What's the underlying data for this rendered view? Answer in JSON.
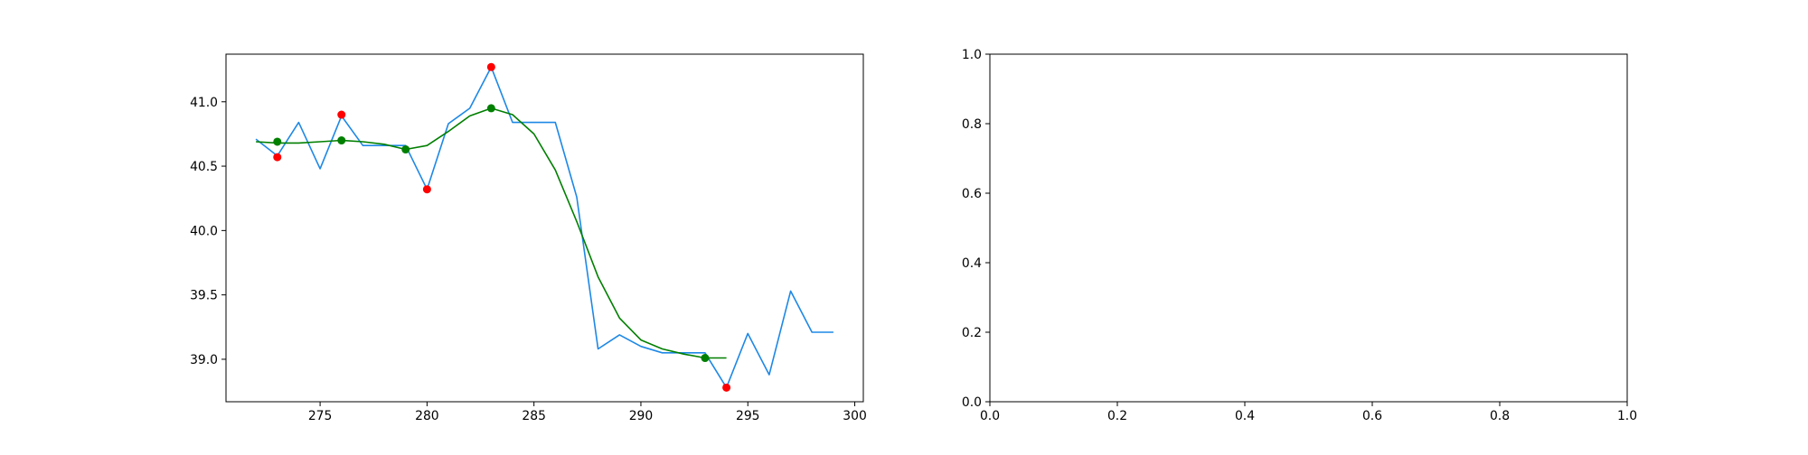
{
  "chart_data": [
    {
      "type": "line",
      "xlim": [
        270.6,
        300.4
      ],
      "ylim": [
        38.67,
        41.37
      ],
      "xticks": [
        275,
        280,
        285,
        290,
        295,
        300
      ],
      "yticks": [
        39.0,
        39.5,
        40.0,
        40.5,
        41.0
      ],
      "xtick_labels": [
        "275",
        "280",
        "285",
        "290",
        "295",
        "300"
      ],
      "ytick_labels": [
        "39.0",
        "39.5",
        "40.0",
        "40.5",
        "41.0"
      ],
      "grid": false,
      "series": [
        {
          "role": "raw",
          "color": "#1e88e5",
          "x": [
            272,
            273,
            274,
            275,
            276,
            277,
            278,
            279,
            280,
            281,
            282,
            283,
            284,
            285,
            286,
            287,
            288,
            289,
            290,
            291,
            292,
            293,
            294,
            295,
            296,
            297,
            298,
            299
          ],
          "y": [
            40.71,
            40.58,
            40.84,
            40.48,
            40.89,
            40.66,
            40.66,
            40.66,
            40.32,
            40.83,
            40.95,
            41.27,
            40.84,
            40.84,
            40.84,
            40.26,
            39.08,
            39.19,
            39.1,
            39.05,
            39.05,
            39.05,
            38.78,
            39.2,
            38.88,
            39.53,
            39.21,
            39.21
          ]
        },
        {
          "role": "smoothed",
          "color": "#007f00",
          "x": [
            272,
            273,
            274,
            275,
            276,
            277,
            278,
            279,
            280,
            281,
            282,
            283,
            284,
            285,
            286,
            287,
            288,
            289,
            290,
            291,
            292,
            293,
            294
          ],
          "y": [
            40.69,
            40.68,
            40.68,
            40.69,
            40.7,
            40.69,
            40.67,
            40.63,
            40.66,
            40.77,
            40.89,
            40.95,
            40.9,
            40.75,
            40.47,
            40.07,
            39.64,
            39.32,
            39.15,
            39.08,
            39.04,
            39.01,
            39.01
          ]
        }
      ],
      "markers": [
        {
          "color": "#ff0000",
          "x": [
            273,
            276,
            280,
            283,
            294
          ],
          "y": [
            40.57,
            40.9,
            40.32,
            41.27,
            38.78
          ]
        },
        {
          "color": "#007f00",
          "x": [
            273,
            276,
            279,
            283,
            293
          ],
          "y": [
            40.69,
            40.7,
            40.63,
            40.95,
            39.01
          ]
        }
      ]
    },
    {
      "type": "line",
      "xlim": [
        0,
        1
      ],
      "ylim": [
        0,
        1
      ],
      "xtick_labels": [
        "0.0",
        "0.2",
        "0.4",
        "0.6",
        "0.8",
        "1.0"
      ],
      "ytick_labels": [
        "0.0",
        "0.2",
        "0.4",
        "0.6",
        "0.8",
        "1.0"
      ],
      "grid": false,
      "series": []
    }
  ]
}
